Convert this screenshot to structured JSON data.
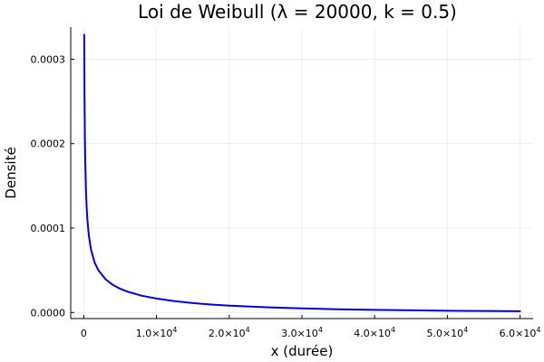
{
  "chart_data": {
    "type": "line",
    "title": "Loi de Weibull (λ = 20000, k = 0.5)",
    "xlabel": "x (durée)",
    "ylabel": "Densité",
    "xlim": [
      -1800,
      61800
    ],
    "ylim": [
      -7.2e-06,
      0.000338
    ],
    "x_ticks": [
      {
        "value": 0,
        "label": "0",
        "exp": ""
      },
      {
        "value": 10000,
        "label": "1.0×10",
        "exp": "4"
      },
      {
        "value": 20000,
        "label": "2.0×10",
        "exp": "4"
      },
      {
        "value": 30000,
        "label": "3.0×10",
        "exp": "4"
      },
      {
        "value": 40000,
        "label": "4.0×10",
        "exp": "4"
      },
      {
        "value": 50000,
        "label": "5.0×10",
        "exp": "4"
      },
      {
        "value": 60000,
        "label": "6.0×10",
        "exp": "4"
      }
    ],
    "y_ticks": [
      {
        "value": 0,
        "label": "0.0000"
      },
      {
        "value": 0.0001,
        "label": "0.0001"
      },
      {
        "value": 0.0002,
        "label": "0.0002"
      },
      {
        "value": 0.0003,
        "label": "0.0003"
      }
    ],
    "grid": true,
    "legend": "none",
    "series": [
      {
        "color": "#0000e6",
        "x": [
          60,
          100,
          150,
          200,
          300,
          400,
          500,
          700,
          1000,
          1500,
          2000,
          3000,
          4000,
          5000,
          6000,
          8000,
          10000,
          12500,
          15000,
          17500,
          20000,
          25000,
          30000,
          35000,
          40000,
          45000,
          50000,
          55000,
          60000
        ],
        "y": [
          0.000329,
          0.000255,
          0.000207,
          0.000178,
          0.000144,
          0.000123,
          0.000109,
          9.06e-05,
          7.41e-05,
          5.89e-05,
          5.01e-05,
          3.93e-05,
          3.27e-05,
          2.81e-05,
          2.47e-05,
          1.98e-05,
          1.65e-05,
          1.34e-05,
          1.11e-05,
          9.44e-06,
          8.1e-06,
          6.15e-06,
          4.8e-06,
          3.82e-06,
          3.1e-06,
          2.54e-06,
          2.09e-06,
          1.74e-06,
          1.45e-06
        ]
      }
    ]
  }
}
